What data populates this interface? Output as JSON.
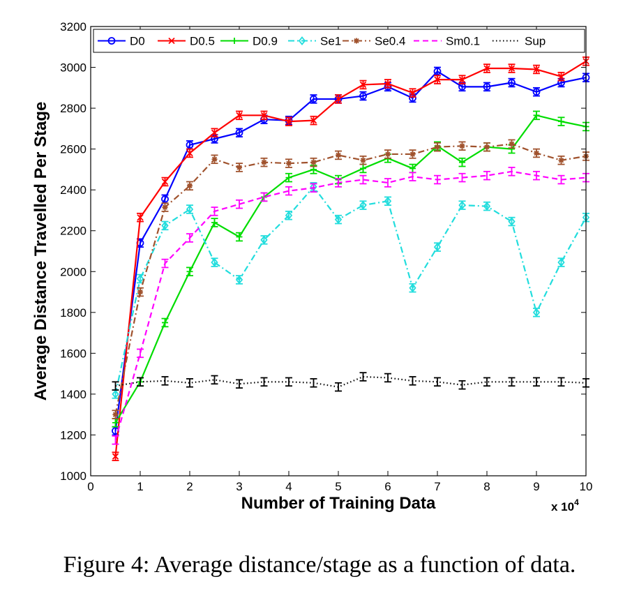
{
  "chart_data": {
    "type": "line",
    "title": "",
    "xlabel": "Number of Training Data",
    "ylabel": "Average Distance Travelled Per Stage",
    "x_multiplier_label": "x 10",
    "x_multiplier_exponent": "4",
    "xlim": [
      0,
      10
    ],
    "ylim": [
      1000,
      3200
    ],
    "xticks": [
      0,
      1,
      2,
      3,
      4,
      5,
      6,
      7,
      8,
      9,
      10
    ],
    "yticks": [
      1000,
      1200,
      1400,
      1600,
      1800,
      2000,
      2200,
      2400,
      2600,
      2800,
      3000,
      3200
    ],
    "grid": false,
    "legend_position": "top (horizontal, inside axes)",
    "x": [
      0.5,
      1,
      1.5,
      2,
      2.5,
      3,
      3.5,
      4,
      4.5,
      5,
      5.5,
      6,
      6.5,
      7,
      7.5,
      8,
      8.5,
      9,
      9.5,
      10
    ],
    "series": [
      {
        "name": "D0",
        "color": "#0000ff",
        "style": "solid",
        "marker": "circle",
        "values": [
          1220,
          2140,
          2355,
          2620,
          2650,
          2680,
          2745,
          2740,
          2845,
          2845,
          2860,
          2905,
          2850,
          2980,
          2905,
          2905,
          2925,
          2880,
          2925,
          2950
        ],
        "errors": [
          20,
          20,
          20,
          20,
          20,
          20,
          20,
          20,
          20,
          20,
          20,
          20,
          20,
          20,
          20,
          20,
          20,
          20,
          20,
          20
        ]
      },
      {
        "name": "D0.5",
        "color": "#ff0000",
        "style": "solid",
        "marker": "x",
        "values": [
          1095,
          2265,
          2440,
          2580,
          2680,
          2765,
          2765,
          2735,
          2740,
          2845,
          2915,
          2920,
          2875,
          2940,
          2940,
          2995,
          2995,
          2990,
          2955,
          3030
        ],
        "errors": [
          20,
          20,
          20,
          20,
          20,
          20,
          20,
          20,
          20,
          20,
          20,
          20,
          20,
          20,
          20,
          20,
          20,
          20,
          20,
          20
        ]
      },
      {
        "name": "D0.9",
        "color": "#00dd00",
        "style": "solid",
        "marker": "plus",
        "values": [
          1260,
          1460,
          1750,
          2000,
          2240,
          2170,
          2365,
          2460,
          2500,
          2450,
          2505,
          2555,
          2505,
          2615,
          2535,
          2610,
          2600,
          2765,
          2735,
          2710
        ],
        "errors": [
          20,
          20,
          20,
          20,
          20,
          20,
          20,
          20,
          20,
          20,
          20,
          20,
          20,
          20,
          20,
          20,
          20,
          20,
          20,
          20
        ]
      },
      {
        "name": "Se1",
        "color": "#22dddd",
        "style": "dashdot",
        "marker": "diamond",
        "values": [
          1400,
          1965,
          2225,
          2305,
          2045,
          1960,
          2155,
          2275,
          2415,
          2255,
          2325,
          2345,
          1920,
          2120,
          2325,
          2320,
          2245,
          1800,
          2045,
          2265
        ],
        "errors": [
          20,
          20,
          20,
          20,
          20,
          20,
          20,
          20,
          20,
          20,
          20,
          20,
          20,
          20,
          20,
          20,
          20,
          20,
          20,
          20
        ]
      },
      {
        "name": "Se0.4",
        "color": "#a0522d",
        "style": "dashdot",
        "marker": "star",
        "values": [
          1300,
          1900,
          2315,
          2420,
          2550,
          2510,
          2535,
          2530,
          2535,
          2570,
          2545,
          2575,
          2575,
          2610,
          2615,
          2610,
          2625,
          2580,
          2545,
          2565
        ],
        "errors": [
          20,
          20,
          20,
          20,
          20,
          20,
          20,
          20,
          20,
          20,
          20,
          20,
          20,
          20,
          20,
          20,
          20,
          20,
          20,
          20
        ]
      },
      {
        "name": "Sm0.1",
        "color": "#ff00ff",
        "style": "dashed",
        "marker": "none",
        "values": [
          1175,
          1600,
          2040,
          2165,
          2295,
          2330,
          2365,
          2395,
          2410,
          2435,
          2450,
          2435,
          2465,
          2450,
          2460,
          2470,
          2490,
          2470,
          2450,
          2460
        ],
        "errors": [
          20,
          20,
          20,
          20,
          20,
          20,
          20,
          20,
          20,
          20,
          20,
          20,
          20,
          20,
          20,
          20,
          20,
          20,
          20,
          20
        ]
      },
      {
        "name": "Sup",
        "color": "#000000",
        "style": "dotted",
        "marker": "none",
        "values": [
          1440,
          1460,
          1465,
          1455,
          1470,
          1450,
          1460,
          1460,
          1455,
          1435,
          1485,
          1480,
          1465,
          1460,
          1445,
          1460,
          1460,
          1460,
          1460,
          1455
        ],
        "errors": [
          20,
          20,
          20,
          20,
          20,
          20,
          20,
          20,
          20,
          20,
          20,
          20,
          20,
          20,
          20,
          20,
          20,
          20,
          20,
          20
        ]
      }
    ]
  },
  "caption": "Figure 4: Average distance/stage as a function of data."
}
